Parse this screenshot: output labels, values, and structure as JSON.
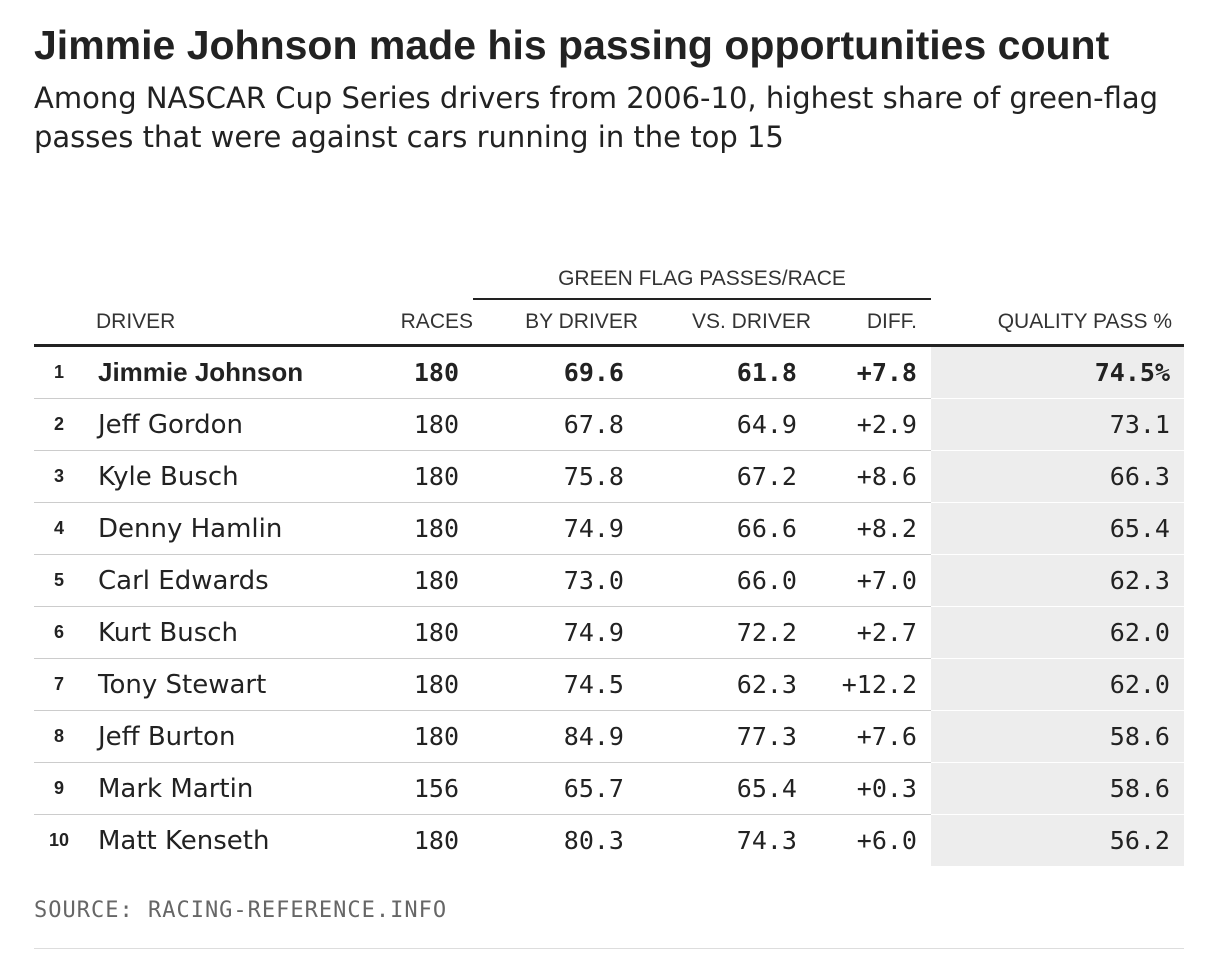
{
  "title": "Jimmie Johnson made his passing opportunities count",
  "subtitle": "Among NASCAR Cup Series drivers from 2006-10, highest share of green-flag passes that were against cars running in the top 15",
  "source": "SOURCE: RACING-REFERENCE.INFO",
  "highlight_color": "#ededed",
  "chart_data": {
    "type": "table",
    "group_header": "GREEN FLAG PASSES/RACE",
    "columns": [
      "",
      "DRIVER",
      "RACES",
      "BY DRIVER",
      "VS. DRIVER",
      "DIFF.",
      "QUALITY PASS %"
    ],
    "rows": [
      {
        "rank": "1",
        "driver": "Jimmie Johnson",
        "races": "180",
        "by_driver": "69.6",
        "vs_driver": "61.8",
        "diff": "+7.8",
        "quality": "74.5%"
      },
      {
        "rank": "2",
        "driver": "Jeff Gordon",
        "races": "180",
        "by_driver": "67.8",
        "vs_driver": "64.9",
        "diff": "+2.9",
        "quality": "73.1"
      },
      {
        "rank": "3",
        "driver": "Kyle Busch",
        "races": "180",
        "by_driver": "75.8",
        "vs_driver": "67.2",
        "diff": "+8.6",
        "quality": "66.3"
      },
      {
        "rank": "4",
        "driver": "Denny Hamlin",
        "races": "180",
        "by_driver": "74.9",
        "vs_driver": "66.6",
        "diff": "+8.2",
        "quality": "65.4"
      },
      {
        "rank": "5",
        "driver": "Carl Edwards",
        "races": "180",
        "by_driver": "73.0",
        "vs_driver": "66.0",
        "diff": "+7.0",
        "quality": "62.3"
      },
      {
        "rank": "6",
        "driver": "Kurt Busch",
        "races": "180",
        "by_driver": "74.9",
        "vs_driver": "72.2",
        "diff": "+2.7",
        "quality": "62.0"
      },
      {
        "rank": "7",
        "driver": "Tony Stewart",
        "races": "180",
        "by_driver": "74.5",
        "vs_driver": "62.3",
        "diff": "+12.2",
        "quality": "62.0"
      },
      {
        "rank": "8",
        "driver": "Jeff Burton",
        "races": "180",
        "by_driver": "84.9",
        "vs_driver": "77.3",
        "diff": "+7.6",
        "quality": "58.6"
      },
      {
        "rank": "9",
        "driver": "Mark Martin",
        "races": "156",
        "by_driver": "65.7",
        "vs_driver": "65.4",
        "diff": "+0.3",
        "quality": "58.6"
      },
      {
        "rank": "10",
        "driver": "Matt Kenseth",
        "races": "180",
        "by_driver": "80.3",
        "vs_driver": "74.3",
        "diff": "+6.0",
        "quality": "56.2"
      }
    ]
  }
}
